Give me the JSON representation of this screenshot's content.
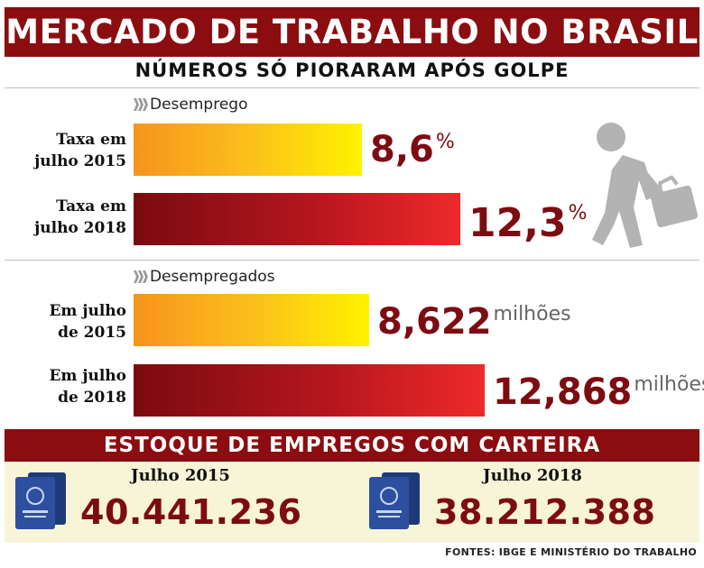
{
  "title": "MERCADO DE TRABALHO NO BRASIL",
  "subtitle": "NÚMEROS SÓ PIORARAM APÓS GOLPE",
  "chart_data": [
    {
      "type": "bar",
      "title": "Desemprego",
      "categories": [
        "Taxa em\njulho 2015",
        "Taxa em\njulho 2018"
      ],
      "values": [
        8.6,
        12.3
      ],
      "value_labels": [
        "8,6",
        "12,3"
      ],
      "unit": "%",
      "bar_colors": [
        "#fbbf1c",
        "#b5161e"
      ]
    },
    {
      "type": "bar",
      "title": "Desempregados",
      "categories": [
        "Em julho\nde 2015",
        "Em julho\nde 2018"
      ],
      "values": [
        8.622,
        12.868
      ],
      "value_labels": [
        "8,622",
        "12,868"
      ],
      "unit": "milhões",
      "bar_colors": [
        "#fbbf1c",
        "#b5161e"
      ]
    }
  ],
  "stock": {
    "title": "ESTOQUE DE EMPREGOS COM CARTEIRA",
    "items": [
      {
        "label": "Julho 2015",
        "value": "40.441.236"
      },
      {
        "label": "Julho 2018",
        "value": "38.212.388"
      }
    ]
  },
  "icons": {
    "figure": "walking-man-briefcase-icon",
    "book": "work-card-icon"
  },
  "colors": {
    "brand": "#8b0d10",
    "value": "#7d0c12",
    "panel": "#f8f4d8"
  },
  "sources": "FONTES: IBGE E MINISTÉRIO DO TRABALHO"
}
